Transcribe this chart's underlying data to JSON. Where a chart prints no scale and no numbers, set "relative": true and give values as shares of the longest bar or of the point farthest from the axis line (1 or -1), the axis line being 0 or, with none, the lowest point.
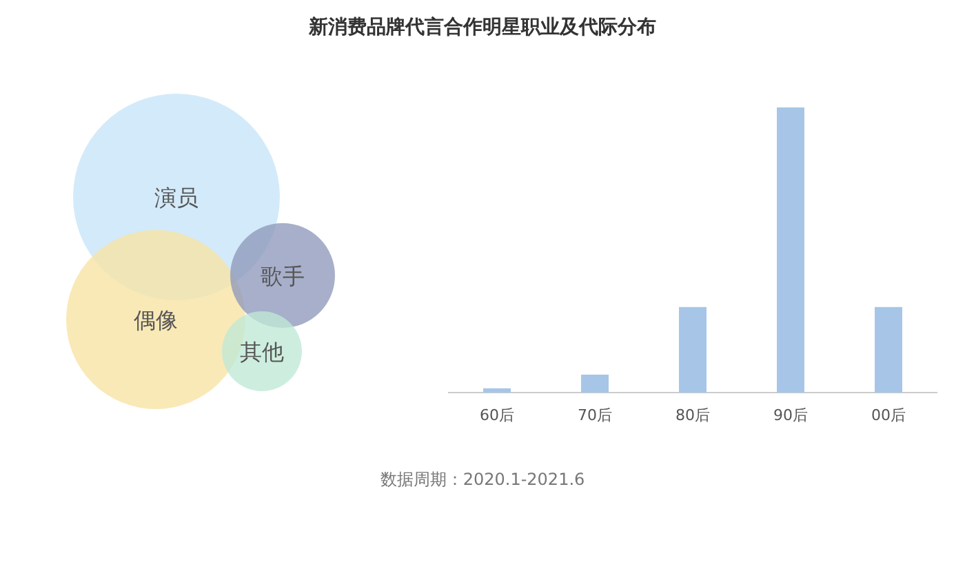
{
  "chart_data": [
    {
      "type": "other",
      "title": "新消费品牌代言合作明星职业及代际分布",
      "annotations": [
        "数据周期：2020.1-2021.6"
      ],
      "categories": [
        "演员",
        "偶像",
        "歌手",
        "其他"
      ],
      "colors": [
        "#c6e4f8",
        "#f7e3a3",
        "#8e99bb",
        "#bfe9d6"
      ]
    },
    {
      "type": "bar",
      "relative": true,
      "categories": [
        "60后",
        "70后",
        "80后",
        "90后",
        "00后"
      ],
      "values": [
        0.015,
        0.063,
        0.3,
        1,
        0.3
      ],
      "color": "#a7c6e7"
    }
  ]
}
